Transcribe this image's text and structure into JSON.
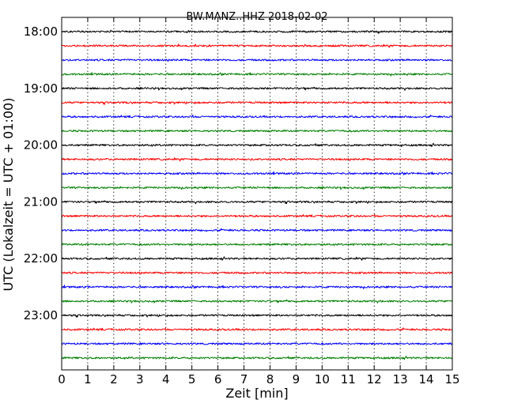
{
  "chart_data": {
    "type": "line",
    "title": "BW.MANZ..HHZ 2018-02-02",
    "xlabel": "Zeit  [min]",
    "ylabel": "UTC (Lokalzeit = UTC + 01:00)",
    "xlim": [
      0,
      15
    ],
    "x_ticks": [
      "0",
      "1",
      "2",
      "3",
      "4",
      "5",
      "6",
      "7",
      "8",
      "9",
      "10",
      "11",
      "12",
      "13",
      "14",
      "15"
    ],
    "y_tick_labels": [
      "18:00",
      "19:00",
      "20:00",
      "21:00",
      "22:00",
      "23:00"
    ],
    "traces_per_hour": 4,
    "trace_colors": [
      "#000000",
      "#ff0000",
      "#0000ff",
      "#008000"
    ],
    "traces": [
      {
        "start": "18:00"
      },
      {
        "start": "18:15"
      },
      {
        "start": "18:30"
      },
      {
        "start": "18:45"
      },
      {
        "start": "19:00"
      },
      {
        "start": "19:15"
      },
      {
        "start": "19:30"
      },
      {
        "start": "19:45"
      },
      {
        "start": "20:00"
      },
      {
        "start": "20:15"
      },
      {
        "start": "20:30"
      },
      {
        "start": "20:45"
      },
      {
        "start": "21:00"
      },
      {
        "start": "21:15"
      },
      {
        "start": "21:30"
      },
      {
        "start": "21:45"
      },
      {
        "start": "22:00"
      },
      {
        "start": "22:15"
      },
      {
        "start": "22:30"
      },
      {
        "start": "22:45"
      },
      {
        "start": "23:00"
      },
      {
        "start": "23:15"
      },
      {
        "start": "23:30"
      },
      {
        "start": "23:45"
      }
    ],
    "grid": "vertical dotted at every minute",
    "legend": "none"
  }
}
